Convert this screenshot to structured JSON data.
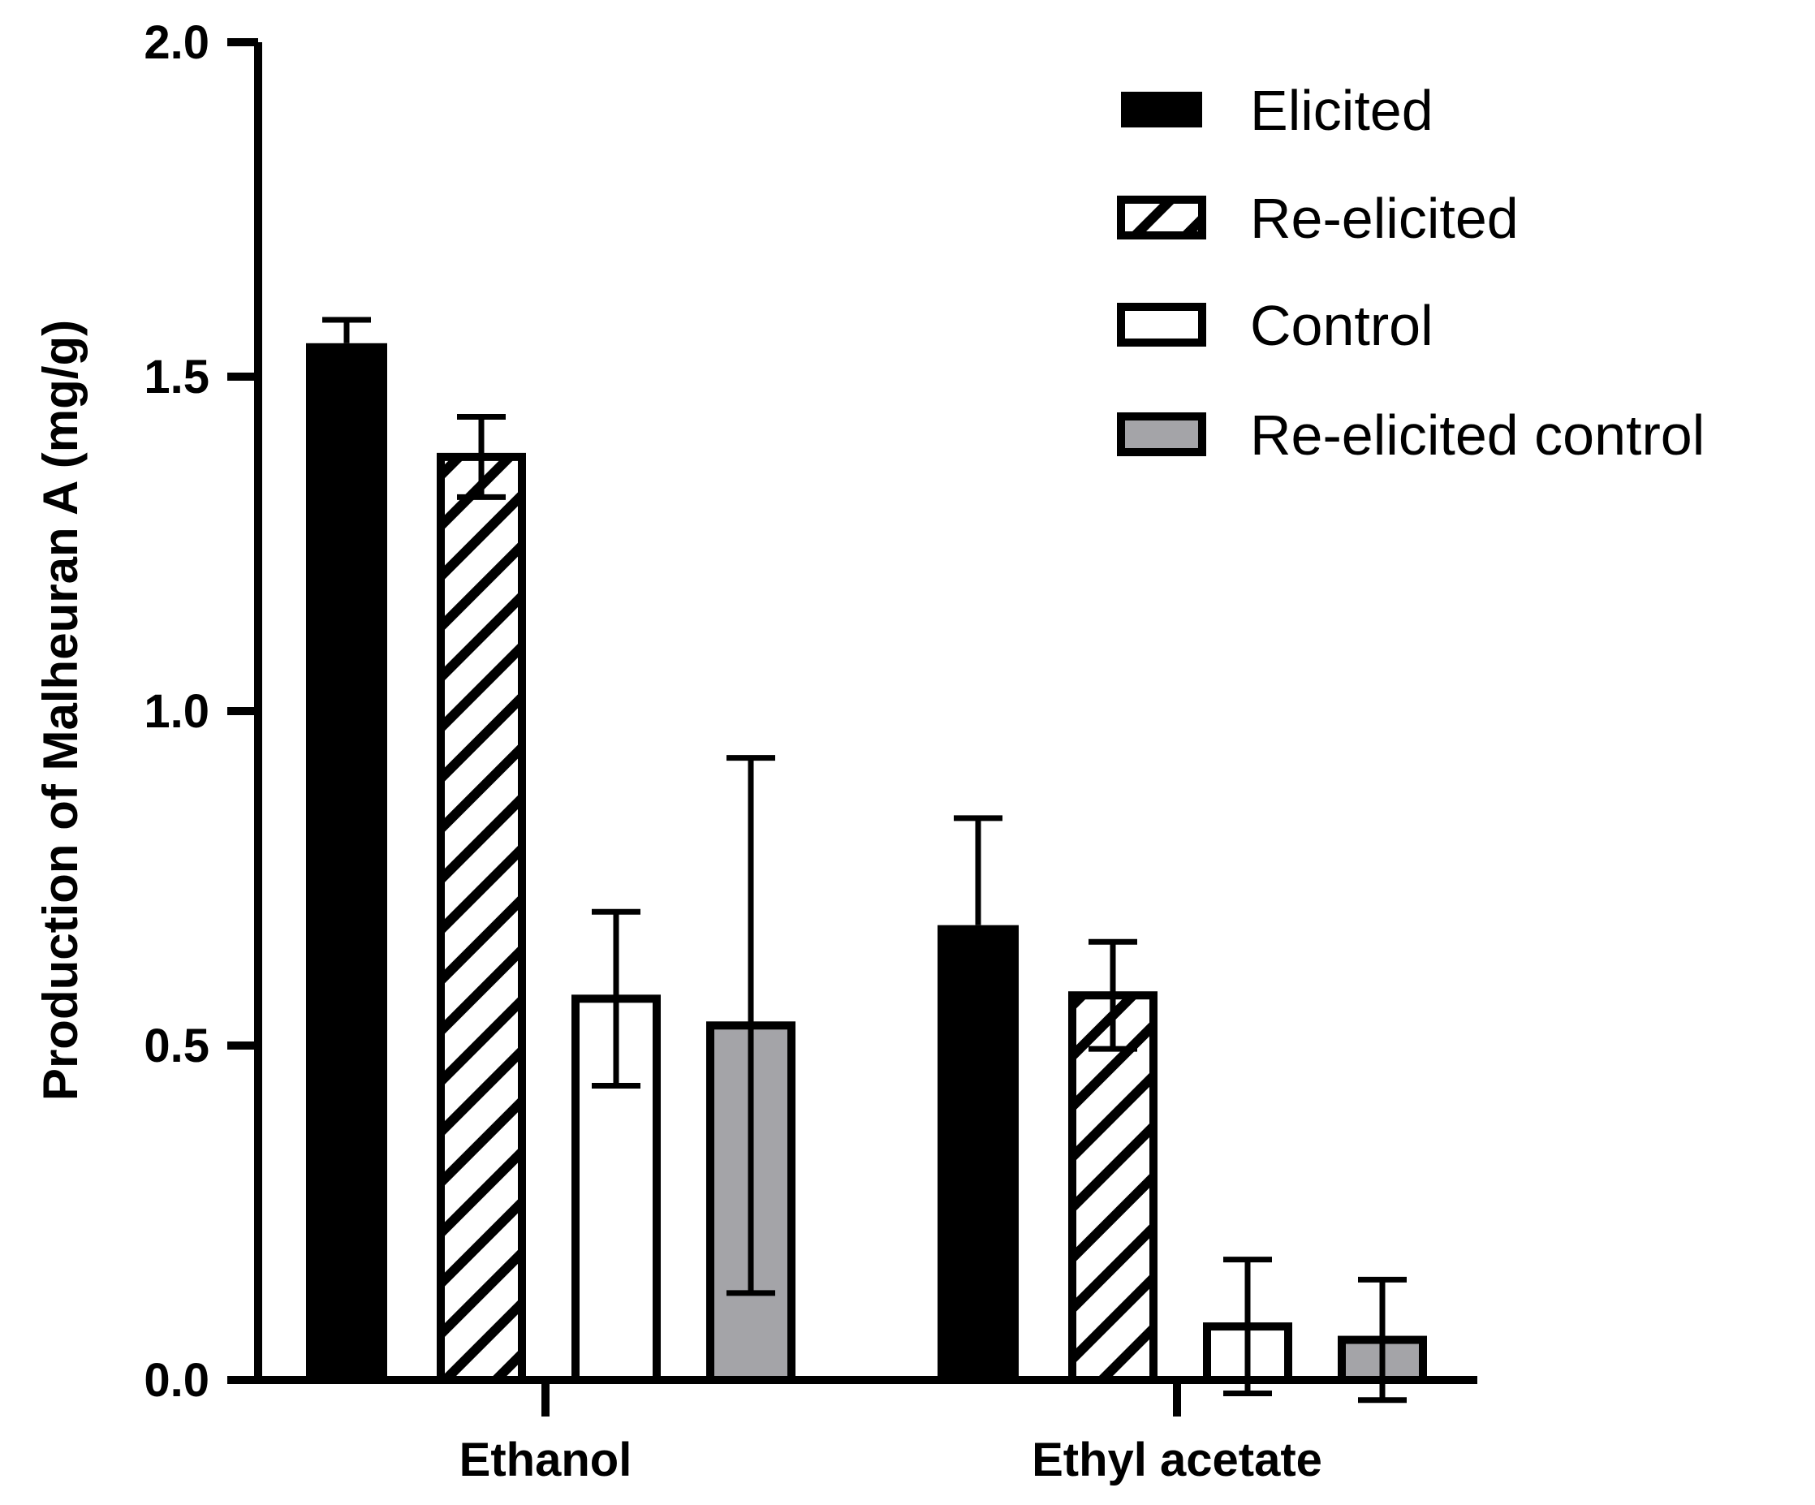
{
  "chart_data": {
    "type": "bar",
    "title": "",
    "xlabel": "",
    "ylabel": "Production of Malheuran A  (mg/g)",
    "ylim": [
      0,
      2.0
    ],
    "yticks": [
      0,
      0.5,
      1.0,
      1.5,
      2.0
    ],
    "ytick_labels": [
      "0.0",
      "0.5",
      "1.0",
      "1.5",
      "2.0"
    ],
    "grid": false,
    "legend_position": "top-right",
    "categories": [
      "Ethanol",
      "Ethyl acetate"
    ],
    "series": [
      {
        "name": "Elicited",
        "fill": "solid-black",
        "values": [
          1.55,
          0.68
        ],
        "errors": [
          0.035,
          0.16
        ]
      },
      {
        "name": "Re-elicited",
        "fill": "hatched",
        "values": [
          1.38,
          0.575
        ],
        "errors": [
          0.06,
          0.08
        ]
      },
      {
        "name": "Control",
        "fill": "white",
        "values": [
          0.57,
          0.08
        ],
        "errors": [
          0.13,
          0.1
        ]
      },
      {
        "name": "Re-elicited control",
        "fill": "gray",
        "values": [
          0.53,
          0.06
        ],
        "errors": [
          0.4,
          0.09
        ]
      }
    ],
    "colors": {
      "black": "#000000",
      "white": "#ffffff",
      "gray": "#a4a4a8"
    }
  }
}
